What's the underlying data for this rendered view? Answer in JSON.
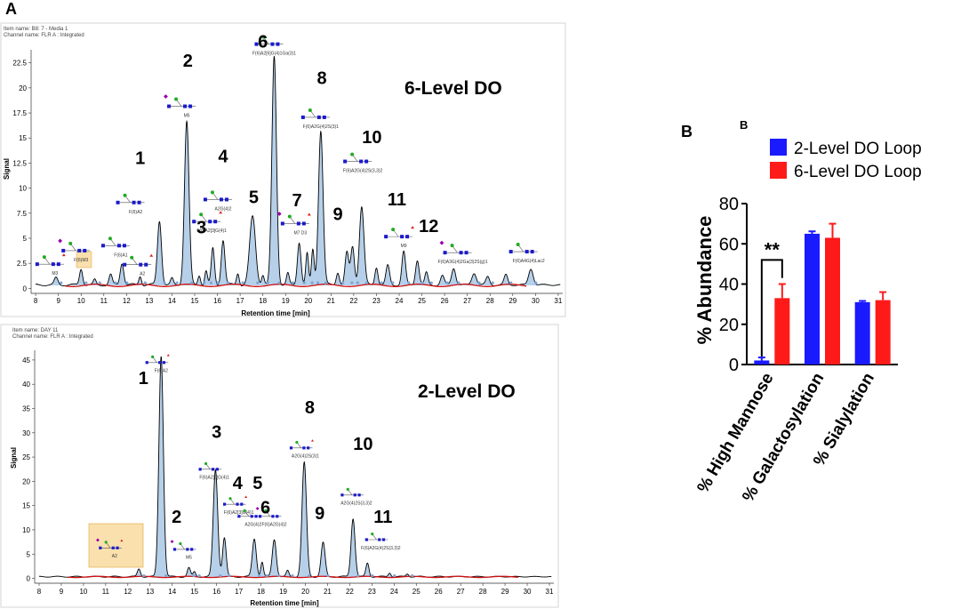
{
  "figure": {
    "panel_a_label": "A",
    "panel_b_label": "B",
    "panel_b_label2": "B"
  },
  "chart_data": [
    {
      "type": "line",
      "panel": "A-top",
      "item_name": "Item name: B8: 7 - Media 1",
      "channel_name": "Channel name: FLR A : Integrated",
      "title": "6-Level DO",
      "xlabel": "Retention time [min]",
      "ylabel": "Signal",
      "xlim": [
        7.8,
        31.2
      ],
      "ylim": [
        -0.5,
        23.8
      ],
      "x_ticks": [
        "8",
        "9",
        "10",
        "11",
        "12",
        "13",
        "14",
        "15",
        "16",
        "17",
        "18",
        "19",
        "20",
        "21",
        "22",
        "23",
        "24",
        "25",
        "26",
        "27",
        "28",
        "29",
        "30",
        "31"
      ],
      "y_ticks": [
        "0",
        "2.5",
        "5",
        "7.5",
        "10",
        "12.5",
        "15",
        "17.5",
        "20",
        "22.5"
      ],
      "baseline_peaks": [
        {
          "x": 8.9,
          "h": 0.7,
          "w": 0.08
        },
        {
          "x": 10.0,
          "h": 1.6,
          "w": 0.07
        },
        {
          "x": 10.6,
          "h": 0.5,
          "w": 0.06
        },
        {
          "x": 11.3,
          "h": 1.0,
          "w": 0.07
        },
        {
          "x": 11.8,
          "h": 2.2,
          "w": 0.08
        },
        {
          "x": 12.6,
          "h": 0.9,
          "w": 0.06
        },
        {
          "x": 13.45,
          "h": 6.4,
          "w": 0.09
        },
        {
          "x": 14.0,
          "h": 0.6,
          "w": 0.06
        },
        {
          "x": 14.65,
          "h": 16.3,
          "w": 0.1
        },
        {
          "x": 15.2,
          "h": 1.0,
          "w": 0.06
        },
        {
          "x": 15.5,
          "h": 1.4,
          "w": 0.06
        },
        {
          "x": 15.8,
          "h": 3.6,
          "w": 0.07
        },
        {
          "x": 16.25,
          "h": 4.5,
          "w": 0.08
        },
        {
          "x": 16.9,
          "h": 1.2,
          "w": 0.06
        },
        {
          "x": 17.55,
          "h": 6.8,
          "w": 0.13
        },
        {
          "x": 18.0,
          "h": 1.0,
          "w": 0.06
        },
        {
          "x": 18.5,
          "h": 22.8,
          "w": 0.1
        },
        {
          "x": 19.1,
          "h": 1.1,
          "w": 0.06
        },
        {
          "x": 19.6,
          "h": 4.3,
          "w": 0.08
        },
        {
          "x": 19.95,
          "h": 3.1,
          "w": 0.06
        },
        {
          "x": 20.2,
          "h": 3.5,
          "w": 0.06
        },
        {
          "x": 20.55,
          "h": 15.4,
          "w": 0.1
        },
        {
          "x": 21.3,
          "h": 1.3,
          "w": 0.07
        },
        {
          "x": 21.7,
          "h": 3.2,
          "w": 0.08
        },
        {
          "x": 21.95,
          "h": 3.8,
          "w": 0.08
        },
        {
          "x": 22.35,
          "h": 7.8,
          "w": 0.1
        },
        {
          "x": 23.0,
          "h": 1.8,
          "w": 0.07
        },
        {
          "x": 23.5,
          "h": 1.9,
          "w": 0.08
        },
        {
          "x": 24.2,
          "h": 3.3,
          "w": 0.08
        },
        {
          "x": 24.8,
          "h": 2.5,
          "w": 0.08
        },
        {
          "x": 25.2,
          "h": 1.2,
          "w": 0.07
        },
        {
          "x": 25.9,
          "h": 0.9,
          "w": 0.08
        },
        {
          "x": 26.4,
          "h": 1.7,
          "w": 0.09
        },
        {
          "x": 27.3,
          "h": 1.2,
          "w": 0.1
        },
        {
          "x": 27.9,
          "h": 0.8,
          "w": 0.08
        },
        {
          "x": 28.7,
          "h": 1.0,
          "w": 0.08
        },
        {
          "x": 29.8,
          "h": 1.6,
          "w": 0.1
        }
      ],
      "peak_numbers": [
        {
          "label": "1",
          "x": 12.6,
          "y": 12.4
        },
        {
          "label": "2",
          "x": 14.7,
          "y": 22.1
        },
        {
          "label": "3",
          "x": 15.3,
          "y": 5.5
        },
        {
          "label": "4",
          "x": 16.25,
          "y": 12.6
        },
        {
          "label": "5",
          "x": 17.6,
          "y": 8.5
        },
        {
          "label": "6",
          "x": 18.0,
          "y": 24.0
        },
        {
          "label": "7",
          "x": 19.5,
          "y": 8.2
        },
        {
          "label": "8",
          "x": 20.6,
          "y": 20.4
        },
        {
          "label": "9",
          "x": 21.3,
          "y": 6.8
        },
        {
          "label": "10",
          "x": 22.8,
          "y": 14.5
        },
        {
          "label": "11",
          "x": 23.9,
          "y": 8.3
        },
        {
          "label": "12",
          "x": 25.3,
          "y": 5.6
        }
      ],
      "glycan_labels": [
        {
          "label": "M3",
          "x": 8.85,
          "y": 1.35
        },
        {
          "label": "F(6)M3",
          "x": 10.0,
          "y": 2.7
        },
        {
          "label": "F(6)A1",
          "x": 11.75,
          "y": 3.2
        },
        {
          "label": "A2",
          "x": 12.7,
          "y": 1.3
        },
        {
          "label": "F(6)A2",
          "x": 12.4,
          "y": 7.5
        },
        {
          "label": "M5",
          "x": 14.65,
          "y": 17.1
        },
        {
          "label": "F(6)A2[3]G(4)1",
          "x": 15.75,
          "y": 5.6
        },
        {
          "label": "A2G(4)2",
          "x": 16.25,
          "y": 7.8
        },
        {
          "label": "F(6)A2[6]G(4)1Ga(3)1",
          "x": 18.5,
          "y": 23.3
        },
        {
          "label": "M7 D3",
          "x": 19.65,
          "y": 5.4
        },
        {
          "label": "F(6)A2G(4)2S(3)1",
          "x": 20.55,
          "y": 16.0
        },
        {
          "label": "F(6)A2G(4)2S(3,3)2",
          "x": 22.4,
          "y": 11.6
        },
        {
          "label": "M9",
          "x": 24.2,
          "y": 4.1
        },
        {
          "label": "F(6)A3G(4)2Ga(3)2S(g)1",
          "x": 26.8,
          "y": 2.5
        },
        {
          "label": "F(6)A4G(4)Lac2",
          "x": 29.7,
          "y": 2.6
        }
      ]
    },
    {
      "type": "line",
      "panel": "A-bottom",
      "item_name": "Item name: DAY 11",
      "channel_name": "Channel name: FLR A : Integrated",
      "title": "2-Level DO",
      "xlabel": "Retention time [min]",
      "ylabel": "Signal",
      "xlim": [
        7.8,
        31.2
      ],
      "ylim": [
        -1,
        47
      ],
      "x_ticks": [
        "8",
        "9",
        "10",
        "11",
        "12",
        "13",
        "14",
        "15",
        "16",
        "17",
        "18",
        "19",
        "20",
        "21",
        "22",
        "23",
        "24",
        "25",
        "26",
        "27",
        "28",
        "29",
        "30",
        "31"
      ],
      "y_ticks": [
        "0",
        "5",
        "10",
        "15",
        "20",
        "25",
        "30",
        "35",
        "40",
        "45"
      ],
      "baseline_peaks": [
        {
          "x": 12.5,
          "h": 1.6,
          "w": 0.07
        },
        {
          "x": 13.5,
          "h": 45.5,
          "w": 0.1
        },
        {
          "x": 14.75,
          "h": 1.8,
          "w": 0.07
        },
        {
          "x": 15.0,
          "h": 1.0,
          "w": 0.06
        },
        {
          "x": 15.95,
          "h": 22.0,
          "w": 0.1
        },
        {
          "x": 16.35,
          "h": 8.0,
          "w": 0.08
        },
        {
          "x": 17.7,
          "h": 7.8,
          "w": 0.09
        },
        {
          "x": 18.05,
          "h": 3.0,
          "w": 0.06
        },
        {
          "x": 18.6,
          "h": 7.7,
          "w": 0.09
        },
        {
          "x": 19.2,
          "h": 1.2,
          "w": 0.06
        },
        {
          "x": 19.95,
          "h": 23.5,
          "w": 0.1
        },
        {
          "x": 20.8,
          "h": 7.0,
          "w": 0.09
        },
        {
          "x": 22.15,
          "h": 12.0,
          "w": 0.09
        },
        {
          "x": 22.8,
          "h": 2.8,
          "w": 0.07
        },
        {
          "x": 23.8,
          "h": 0.8,
          "w": 0.06
        },
        {
          "x": 24.6,
          "h": 0.6,
          "w": 0.06
        }
      ],
      "peak_numbers": [
        {
          "label": "1",
          "x": 12.7,
          "y": 40.0
        },
        {
          "label": "2",
          "x": 14.2,
          "y": 11.5
        },
        {
          "label": "3",
          "x": 16.0,
          "y": 29.0
        },
        {
          "label": "4",
          "x": 16.95,
          "y": 18.4
        },
        {
          "label": "5",
          "x": 17.85,
          "y": 18.4
        },
        {
          "label": "6",
          "x": 18.2,
          "y": 13.4
        },
        {
          "label": "8",
          "x": 20.2,
          "y": 34.0
        },
        {
          "label": "9",
          "x": 20.65,
          "y": 12.2
        },
        {
          "label": "10",
          "x": 22.6,
          "y": 26.5
        },
        {
          "label": "11",
          "x": 23.5,
          "y": 11.5
        }
      ],
      "glycan_labels": [
        {
          "label": "F(6)A2",
          "x": 13.5,
          "y": 42.5
        },
        {
          "label": "M5",
          "x": 14.75,
          "y": 4.0
        },
        {
          "label": "F(6)A2[6]G(4)1",
          "x": 15.9,
          "y": 20.5
        },
        {
          "label": "F(6)A2[3]G(4)1",
          "x": 17.0,
          "y": 13.3
        },
        {
          "label": "A2G(4)2",
          "x": 17.65,
          "y": 10.8
        },
        {
          "label": "F(6)A2G(4)2",
          "x": 18.6,
          "y": 10.8
        },
        {
          "label": "A2G(4)2S(3)1",
          "x": 20.0,
          "y": 24.9
        },
        {
          "label": "A2G(4)2S(3,3)2",
          "x": 22.3,
          "y": 15.2
        },
        {
          "label": "F(6)A2G(4)2S(3,3)2",
          "x": 23.4,
          "y": 6.0
        },
        {
          "label": "A2",
          "x": 11.4,
          "y": 4.3
        }
      ]
    },
    {
      "type": "bar",
      "panel": "B",
      "categories": [
        "% High Mannose",
        "% Galactosylation",
        "% Sialylation"
      ],
      "series": [
        {
          "name": "2-Level DO Loop",
          "color": "#1a1aff",
          "values": [
            2,
            65,
            31
          ],
          "errors": [
            1.5,
            1.2,
            0.6
          ]
        },
        {
          "name": "6-Level DO Loop",
          "color": "#ff1a1a",
          "values": [
            33,
            63,
            32
          ],
          "errors": [
            7,
            7,
            4
          ]
        }
      ],
      "ylabel": "% Abundance",
      "ylim": [
        0,
        80
      ],
      "y_ticks": [
        "0",
        "20",
        "40",
        "60",
        "80"
      ],
      "significance": "**",
      "legend_position": "top"
    }
  ]
}
